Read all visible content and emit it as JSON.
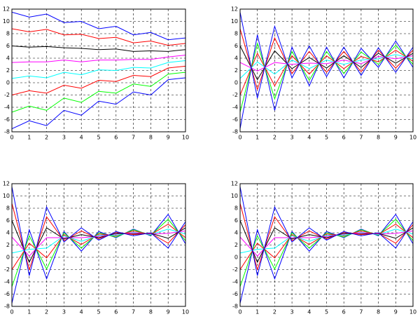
{
  "chart_data": [
    {
      "type": "line",
      "x": [
        0,
        1,
        2,
        3,
        4,
        5,
        6,
        7,
        8,
        9,
        10
      ],
      "xlim": [
        0,
        10
      ],
      "ylim": [
        -8,
        12
      ],
      "xticks": [
        0,
        1,
        2,
        3,
        4,
        5,
        6,
        7,
        8,
        9,
        10
      ],
      "yticks": [
        -8,
        -6,
        -4,
        -2,
        0,
        2,
        4,
        6,
        8,
        10,
        12
      ],
      "grid": true,
      "series": [
        {
          "color": "#0000ff",
          "values": [
            -7.5,
            -6.2,
            -7,
            -4.5,
            -5.3,
            -3,
            -3.5,
            -1.5,
            -2,
            0.5,
            0.8
          ]
        },
        {
          "color": "#00ff00",
          "values": [
            -4.8,
            -3.8,
            -4.5,
            -2.5,
            -3.2,
            -1.4,
            -1.7,
            -0.2,
            -0.6,
            1.4,
            1.7
          ]
        },
        {
          "color": "#ff0000",
          "values": [
            -2.0,
            -1.3,
            -1.7,
            -0.4,
            -0.9,
            0.4,
            0.2,
            1.2,
            1.0,
            2.4,
            2.7
          ]
        },
        {
          "color": "#00ffff",
          "values": [
            0.7,
            1.1,
            0.8,
            1.7,
            1.3,
            2.1,
            2.0,
            2.5,
            2.4,
            3.3,
            3.6
          ]
        },
        {
          "color": "#ff00ff",
          "values": [
            3.3,
            3.4,
            3.4,
            3.7,
            3.4,
            3.7,
            3.7,
            3.8,
            3.8,
            4.2,
            4.5
          ]
        },
        {
          "color": "#000000",
          "values": [
            6.0,
            5.8,
            5.9,
            5.7,
            5.6,
            5.4,
            5.5,
            5.1,
            5.2,
            5.1,
            5.4
          ]
        },
        {
          "color": "#ff0000",
          "values": [
            8.8,
            8.3,
            8.7,
            7.8,
            7.9,
            7.2,
            7.4,
            6.5,
            6.8,
            6.1,
            6.4
          ]
        },
        {
          "color": "#0000ff",
          "values": [
            11.5,
            10.7,
            11.2,
            9.8,
            10,
            8.8,
            9.2,
            7.8,
            8.2,
            7,
            7.3
          ]
        }
      ]
    },
    {
      "type": "line",
      "x": [
        0,
        1,
        2,
        3,
        4,
        5,
        6,
        7,
        8,
        9,
        10
      ],
      "xlim": [
        0,
        10
      ],
      "ylim": [
        -8,
        12
      ],
      "xticks": [
        0,
        1,
        2,
        3,
        4,
        5,
        6,
        7,
        8,
        9,
        10
      ],
      "yticks": [
        -8,
        -6,
        -4,
        -2,
        0,
        2,
        4,
        6,
        8,
        10,
        12
      ],
      "grid": true,
      "series": [
        {
          "color": "#0000ff",
          "values": [
            -7.5,
            7.8,
            -4.5,
            5.8,
            -0.5,
            5.8,
            0.8,
            5.6,
            2.5,
            6.8,
            2.5
          ]
        },
        {
          "color": "#00ff00",
          "values": [
            -4.8,
            6.4,
            -2.6,
            5.1,
            0.4,
            5.1,
            1.5,
            5.0,
            3.0,
            6.1,
            3.0
          ]
        },
        {
          "color": "#ff0000",
          "values": [
            -2.0,
            4.8,
            -0.5,
            4.4,
            1.4,
            4.4,
            2.3,
            4.3,
            3.4,
            5.3,
            3.5
          ]
        },
        {
          "color": "#00ffff",
          "values": [
            0.7,
            3.4,
            1.4,
            3.7,
            2.3,
            3.7,
            3.0,
            3.7,
            3.9,
            4.6,
            3.9
          ]
        },
        {
          "color": "#ff00ff",
          "values": [
            3.3,
            1.9,
            3.3,
            3.0,
            3.2,
            3.1,
            3.7,
            3.1,
            4.3,
            3.9,
            4.4
          ]
        },
        {
          "color": "#000000",
          "values": [
            6.0,
            0.5,
            5.2,
            2.3,
            4.1,
            2.4,
            4.4,
            2.5,
            4.8,
            3.2,
            4.8
          ]
        },
        {
          "color": "#ff0000",
          "values": [
            8.8,
            -1.1,
            7.3,
            1.5,
            5.1,
            1.7,
            5.1,
            1.8,
            5.3,
            2.4,
            5.3
          ]
        },
        {
          "color": "#0000ff",
          "values": [
            11.5,
            -2.5,
            9.2,
            0.8,
            6,
            1,
            5.8,
            1.2,
            5.7,
            1.7,
            5.8
          ]
        }
      ]
    },
    {
      "type": "line",
      "x": [
        0,
        1,
        2,
        3,
        4,
        5,
        6,
        7,
        8,
        9,
        10
      ],
      "xlim": [
        0,
        10
      ],
      "ylim": [
        -8,
        12
      ],
      "xticks": [
        0,
        1,
        2,
        3,
        4,
        5,
        6,
        7,
        8,
        9,
        10
      ],
      "yticks": [
        -8,
        -6,
        -4,
        -2,
        0,
        2,
        4,
        6,
        8,
        10,
        12
      ],
      "grid": true,
      "series": [
        {
          "color": "#0000ff",
          "values": [
            -7.5,
            4.5,
            -3.5,
            4.2,
            1,
            4.2,
            3.2,
            4.6,
            3.5,
            7,
            2.2
          ]
        },
        {
          "color": "#00ff00",
          "values": [
            -4.8,
            3.5,
            -1.9,
            4.0,
            1.5,
            4.0,
            3.3,
            4.5,
            3.6,
            6.2,
            2.7
          ]
        },
        {
          "color": "#ff0000",
          "values": [
            -2.0,
            2.3,
            -0.1,
            3.7,
            2.1,
            3.8,
            3.5,
            4.3,
            3.7,
            5.4,
            3.2
          ]
        },
        {
          "color": "#00ffff",
          "values": [
            0.7,
            1.3,
            1.5,
            3.5,
            2.6,
            3.6,
            3.6,
            4.1,
            3.7,
            4.6,
            3.8
          ]
        },
        {
          "color": "#ff00ff",
          "values": [
            3.3,
            0.2,
            3.2,
            3.2,
            3.2,
            3.4,
            3.8,
            4.0,
            3.8,
            3.9,
            4.3
          ]
        },
        {
          "color": "#000000",
          "values": [
            6.0,
            -0.8,
            4.8,
            3.0,
            3.7,
            3.2,
            3.9,
            3.8,
            3.9,
            3.1,
            4.8
          ]
        },
        {
          "color": "#ff0000",
          "values": [
            8.8,
            -2.0,
            6.6,
            2.7,
            4.3,
            3.0,
            4.1,
            3.7,
            3.9,
            2.3,
            5.3
          ]
        },
        {
          "color": "#0000ff",
          "values": [
            11.5,
            -3,
            8.2,
            2.5,
            4.8,
            2.8,
            4.2,
            3.5,
            4,
            1.5,
            5.8
          ]
        }
      ]
    },
    {
      "type": "line",
      "x": [
        0,
        1,
        2,
        3,
        4,
        5,
        6,
        7,
        8,
        9,
        10
      ],
      "xlim": [
        0,
        10
      ],
      "ylim": [
        -8,
        12
      ],
      "xticks": [
        0,
        1,
        2,
        3,
        4,
        5,
        6,
        7,
        8,
        9,
        10
      ],
      "yticks": [
        -8,
        -6,
        -4,
        -2,
        0,
        2,
        4,
        6,
        8,
        10,
        12
      ],
      "grid": true,
      "series": [
        {
          "color": "#0000ff",
          "values": [
            -7.5,
            4.5,
            -3.5,
            4.2,
            1,
            4.2,
            3.2,
            4.6,
            3.5,
            7,
            2.2
          ]
        },
        {
          "color": "#00ff00",
          "values": [
            -4.8,
            3.5,
            -1.9,
            4.0,
            1.5,
            4.0,
            3.3,
            4.5,
            3.6,
            6.2,
            2.7
          ]
        },
        {
          "color": "#ff0000",
          "values": [
            -2.0,
            2.3,
            -0.1,
            3.7,
            2.1,
            3.8,
            3.5,
            4.3,
            3.7,
            5.4,
            3.2
          ]
        },
        {
          "color": "#00ffff",
          "values": [
            0.7,
            1.3,
            1.5,
            3.5,
            2.6,
            3.6,
            3.6,
            4.1,
            3.7,
            4.6,
            3.8
          ]
        },
        {
          "color": "#ff00ff",
          "values": [
            3.3,
            0.2,
            3.2,
            3.2,
            3.2,
            3.4,
            3.8,
            4.0,
            3.8,
            3.9,
            4.3
          ]
        },
        {
          "color": "#000000",
          "values": [
            6.0,
            -0.8,
            4.8,
            3.0,
            3.7,
            3.2,
            3.9,
            3.8,
            3.9,
            3.1,
            4.8
          ]
        },
        {
          "color": "#ff0000",
          "values": [
            8.8,
            -2.0,
            6.6,
            2.7,
            4.3,
            3.0,
            4.1,
            3.7,
            3.9,
            2.3,
            5.3
          ]
        },
        {
          "color": "#0000ff",
          "values": [
            11.5,
            -3,
            8.2,
            2.5,
            4.8,
            2.8,
            4.2,
            3.5,
            4,
            1.5,
            5.8
          ]
        }
      ]
    }
  ]
}
